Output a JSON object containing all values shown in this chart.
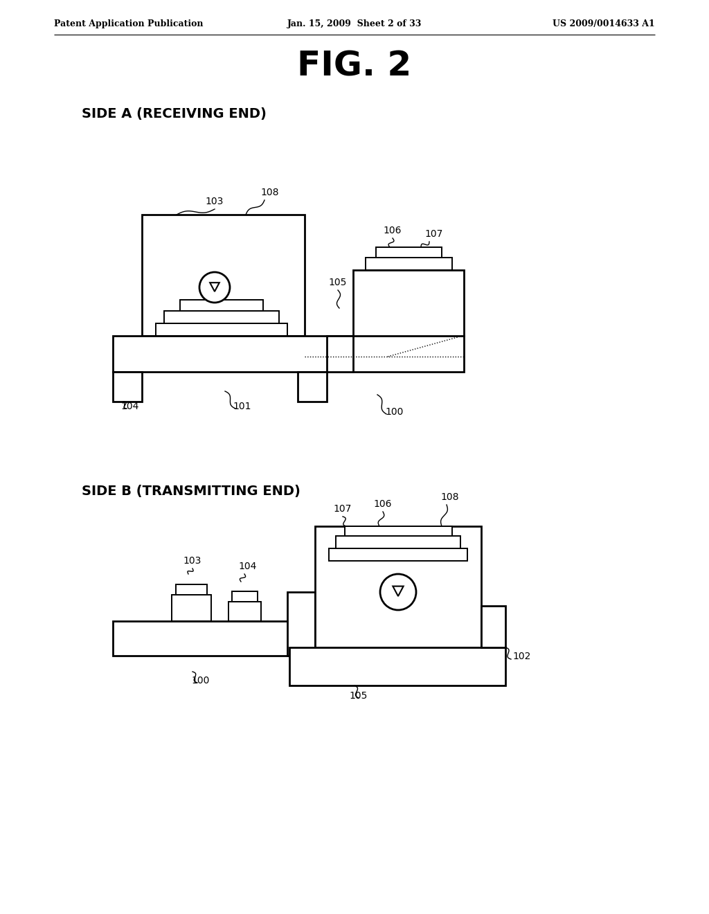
{
  "bg_color": "#ffffff",
  "header_left": "Patent Application Publication",
  "header_center": "Jan. 15, 2009  Sheet 2 of 33",
  "header_right": "US 2009/0014633 A1",
  "fig_title": "FIG. 2",
  "side_a_label": "SIDE A (RECEIVING END)",
  "side_b_label": "SIDE B (TRANSMITTING END)",
  "lw_main": 2.0,
  "lw_thin": 1.4,
  "lw_dot": 1.0,
  "label_fontsize": 10,
  "header_fontsize": 9,
  "title_fontsize": 36,
  "subtitle_fontsize": 14
}
